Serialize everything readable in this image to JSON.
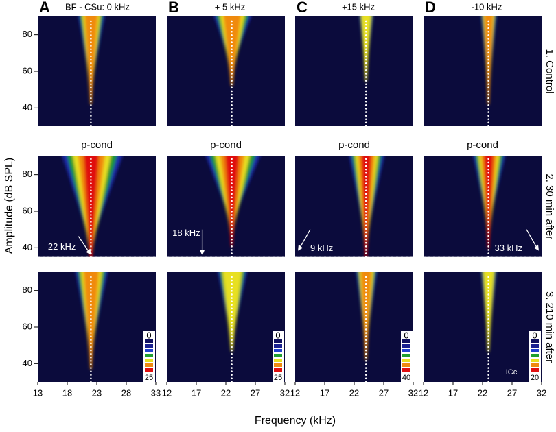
{
  "chart_data": [
    {
      "type": "heatmap",
      "panel": "A",
      "title": "BF - CSu:  0 kHz",
      "xlim": [
        13,
        33
      ],
      "xticks": [
        13,
        18,
        23,
        28,
        33
      ],
      "bf": 22,
      "annotation": {
        "text": "22 kHz",
        "x": 22
      },
      "colorbar": [
        0,
        25
      ]
    },
    {
      "type": "heatmap",
      "panel": "B",
      "title": "+ 5 kHz",
      "xlim": [
        12,
        32
      ],
      "xticks": [
        12,
        17,
        22,
        27,
        32
      ],
      "bf": 23,
      "annotation": {
        "text": "18 kHz",
        "x": 18
      },
      "colorbar": [
        0,
        25
      ]
    },
    {
      "type": "heatmap",
      "panel": "C",
      "title": "+15 kHz",
      "xlim": [
        12,
        32
      ],
      "xticks": [
        12,
        17,
        22,
        27,
        32
      ],
      "bf": 24,
      "annotation": {
        "text": "9 kHz",
        "x": 9
      },
      "colorbar": [
        0,
        40
      ]
    },
    {
      "type": "heatmap",
      "panel": "D",
      "title": "-10 kHz",
      "xlim": [
        12,
        32
      ],
      "xticks": [
        12,
        17,
        22,
        27,
        32
      ],
      "bf": 23,
      "annotation": {
        "text": "33 kHz",
        "x": 33
      },
      "colorbar": [
        0,
        20
      ]
    }
  ],
  "rows": [
    {
      "label": "1. Control",
      "ylim": [
        30,
        90
      ],
      "yticks": [
        40,
        60,
        80
      ]
    },
    {
      "label": "2. 30 min after",
      "subtitle": "p-cond",
      "ylim": [
        35,
        90
      ],
      "yticks": [
        40,
        60,
        80
      ]
    },
    {
      "label": "3. 210 min after",
      "ylim": [
        30,
        90
      ],
      "yticks": [
        40,
        60,
        80
      ]
    }
  ],
  "xlabel": "Frequency (kHz)",
  "ylabel": "Amplitude (dB SPL)",
  "region": "ICc"
}
